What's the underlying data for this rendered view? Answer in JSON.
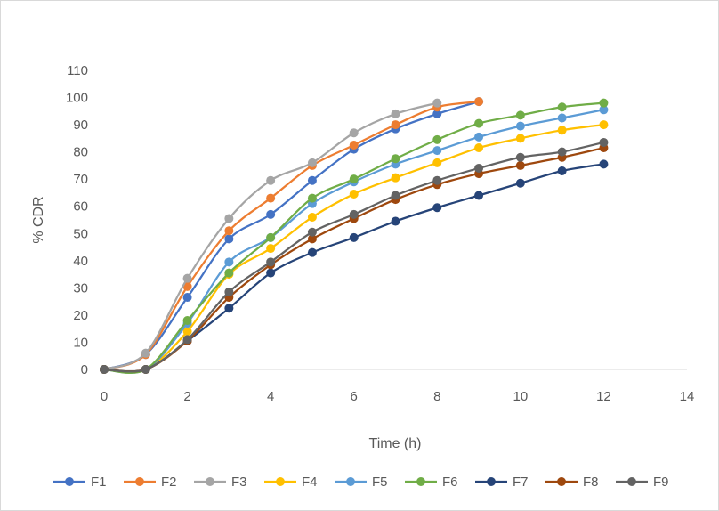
{
  "chart_data": {
    "type": "line",
    "title": "",
    "xlabel": "Time (h)",
    "ylabel": "% CDR",
    "xlim": [
      0,
      14
    ],
    "ylim": [
      0,
      110
    ],
    "xticks": [
      0,
      2,
      4,
      6,
      8,
      10,
      12,
      14
    ],
    "yticks": [
      0,
      10,
      20,
      30,
      40,
      50,
      60,
      70,
      80,
      90,
      100,
      110
    ],
    "grid": false,
    "legend_position": "bottom",
    "x": [
      0,
      1,
      2,
      3,
      4,
      5,
      6,
      7,
      8,
      9,
      10,
      11,
      12
    ],
    "series": [
      {
        "name": "F1",
        "color": "#4472C4",
        "values": [
          0,
          5.5,
          26.5,
          48,
          57,
          69.5,
          81,
          88.5,
          94,
          98.5,
          null,
          null,
          null
        ]
      },
      {
        "name": "F2",
        "color": "#ED7D31",
        "values": [
          0,
          5.5,
          30.5,
          51,
          63,
          75,
          82.5,
          90,
          96.5,
          98.5,
          null,
          null,
          null
        ]
      },
      {
        "name": "F3",
        "color": "#A5A5A5",
        "values": [
          0,
          6,
          33.5,
          55.5,
          69.5,
          76,
          87,
          94,
          98,
          null,
          null,
          null,
          null
        ]
      },
      {
        "name": "F4",
        "color": "#FFC000",
        "values": [
          0,
          0,
          14,
          35,
          44.5,
          56,
          64.5,
          70.5,
          76,
          81.5,
          85,
          88,
          90
        ]
      },
      {
        "name": "F5",
        "color": "#5B9BD5",
        "values": [
          0,
          0,
          17,
          39.5,
          48.5,
          61,
          69,
          75.5,
          80.5,
          85.5,
          89.5,
          92.5,
          95.5
        ]
      },
      {
        "name": "F6",
        "color": "#70AD47",
        "values": [
          0,
          0,
          18,
          35.5,
          48.5,
          63,
          70,
          77.5,
          84.5,
          90.5,
          93.5,
          96.5,
          98
        ]
      },
      {
        "name": "F7",
        "color": "#264478",
        "values": [
          0,
          0,
          10.5,
          22.5,
          35.5,
          43,
          48.5,
          54.5,
          59.5,
          64,
          68.5,
          73,
          75.5
        ]
      },
      {
        "name": "F8",
        "color": "#9E480E",
        "values": [
          0,
          0,
          10.5,
          26.5,
          38.5,
          48,
          55.5,
          62.5,
          68,
          72,
          75,
          78,
          81.5
        ]
      },
      {
        "name": "F9",
        "color": "#636363",
        "values": [
          0,
          0,
          11,
          28.5,
          39.5,
          50.5,
          57,
          64,
          69.5,
          74,
          78,
          80,
          83.5
        ]
      }
    ]
  }
}
